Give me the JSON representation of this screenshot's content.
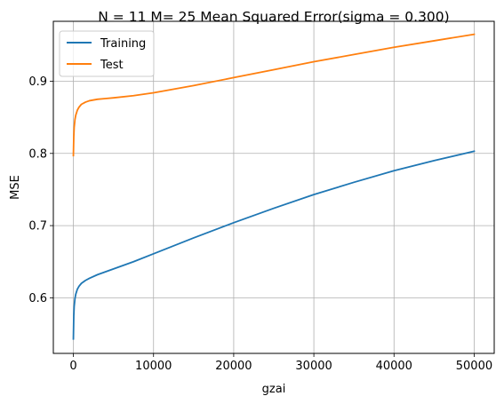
{
  "chart_data": {
    "type": "line",
    "title": "N = 11 M= 25 Mean Squared Error(sigma = 0.300)",
    "xlabel": "gzai",
    "ylabel": "MSE",
    "xlim": [
      -2500,
      52500
    ],
    "ylim": [
      0.523,
      0.983
    ],
    "xticks": [
      0,
      10000,
      20000,
      30000,
      40000,
      50000
    ],
    "xtick_labels": [
      "0",
      "10000",
      "20000",
      "30000",
      "40000",
      "50000"
    ],
    "yticks": [
      0.6,
      0.7,
      0.8,
      0.9
    ],
    "ytick_labels": [
      "0.6",
      "0.7",
      "0.8",
      "0.9"
    ],
    "grid": true,
    "legend_position": "top-left",
    "series": [
      {
        "name": "Training",
        "color": "#1f77b4",
        "x": [
          0,
          50,
          100,
          200,
          300,
          500,
          700,
          1000,
          1500,
          2000,
          3000,
          4000,
          5000,
          7500,
          10000,
          15000,
          20000,
          25000,
          30000,
          35000,
          40000,
          45000,
          50000
        ],
        "y": [
          0.543,
          0.575,
          0.588,
          0.599,
          0.605,
          0.612,
          0.616,
          0.62,
          0.624,
          0.627,
          0.632,
          0.636,
          0.64,
          0.65,
          0.661,
          0.683,
          0.704,
          0.724,
          0.743,
          0.76,
          0.776,
          0.79,
          0.803
        ]
      },
      {
        "name": "Test",
        "color": "#ff7f0e",
        "x": [
          0,
          50,
          100,
          200,
          300,
          500,
          700,
          1000,
          1500,
          2000,
          3000,
          4000,
          5000,
          7500,
          10000,
          15000,
          20000,
          25000,
          30000,
          35000,
          40000,
          45000,
          50000
        ],
        "y": [
          0.797,
          0.823,
          0.836,
          0.847,
          0.853,
          0.86,
          0.864,
          0.868,
          0.871,
          0.873,
          0.875,
          0.876,
          0.877,
          0.88,
          0.884,
          0.894,
          0.905,
          0.916,
          0.927,
          0.937,
          0.947,
          0.956,
          0.965
        ]
      }
    ]
  }
}
